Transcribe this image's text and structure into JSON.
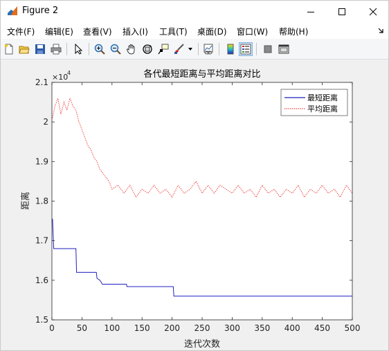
{
  "window": {
    "title": "Figure 2"
  },
  "menu": {
    "items": [
      "文件(F)",
      "编辑(E)",
      "查看(V)",
      "插入(I)",
      "工具(T)",
      "桌面(D)",
      "窗口(W)",
      "帮助(H)"
    ],
    "overflow_icon": "arrow-icon"
  },
  "toolbar": {
    "icons": [
      "new-figure-icon",
      "open-file-icon",
      "save-icon",
      "print-icon",
      "select-arrow-icon",
      "zoom-in-icon",
      "zoom-out-icon",
      "pan-hand-icon",
      "rotate-3d-icon",
      "data-cursor-icon",
      "brush-icon",
      "brush-dropdown-icon",
      "link-plot-icon",
      "colorbar-icon",
      "legend-icon",
      "hide-plot-tools-icon",
      "show-plot-tools-icon"
    ]
  },
  "colors": {
    "shortest_series": "#1f1fbf",
    "average_series": "#e8231f",
    "axes_bg": "#ffffff",
    "figure_bg": "#f0f0f0"
  },
  "chart_data": {
    "type": "line",
    "title": "各代最短距离与平均距离对比",
    "xlabel": "迭代次数",
    "ylabel": "距离",
    "exponent_label": "×10",
    "exponent_power": "4",
    "xlim": [
      0,
      500
    ],
    "ylim": [
      1.5,
      2.1
    ],
    "x_ticks": [
      "0",
      "50",
      "100",
      "150",
      "200",
      "250",
      "300",
      "350",
      "400",
      "450",
      "500"
    ],
    "y_ticks": [
      "1.5",
      "1.6",
      "1.7",
      "1.8",
      "1.9",
      "2",
      "2.1"
    ],
    "grid": false,
    "legend_position": "top-right",
    "series": [
      {
        "name": "最短距离",
        "style": "solid",
        "color": "#1f1fbf",
        "points": [
          [
            1,
            1.755
          ],
          [
            3,
            1.68
          ],
          [
            40,
            1.68
          ],
          [
            41,
            1.62
          ],
          [
            74,
            1.62
          ],
          [
            75,
            1.605
          ],
          [
            80,
            1.6
          ],
          [
            84,
            1.59
          ],
          [
            124,
            1.59
          ],
          [
            125,
            1.584
          ],
          [
            202,
            1.584
          ],
          [
            203,
            1.56
          ],
          [
            500,
            1.56
          ]
        ]
      },
      {
        "name": "平均距离",
        "style": "dotted",
        "color": "#e8231f",
        "points": [
          [
            1,
            2.01
          ],
          [
            5,
            2.04
          ],
          [
            10,
            2.06
          ],
          [
            15,
            2.02
          ],
          [
            20,
            2.05
          ],
          [
            25,
            2.03
          ],
          [
            30,
            2.06
          ],
          [
            35,
            2.04
          ],
          [
            40,
            2.03
          ],
          [
            45,
            2.0
          ],
          [
            50,
            1.98
          ],
          [
            55,
            1.96
          ],
          [
            60,
            1.94
          ],
          [
            65,
            1.93
          ],
          [
            70,
            1.91
          ],
          [
            75,
            1.9
          ],
          [
            80,
            1.88
          ],
          [
            85,
            1.87
          ],
          [
            90,
            1.86
          ],
          [
            95,
            1.85
          ],
          [
            100,
            1.83
          ],
          [
            110,
            1.84
          ],
          [
            120,
            1.82
          ],
          [
            130,
            1.84
          ],
          [
            140,
            1.81
          ],
          [
            150,
            1.83
          ],
          [
            160,
            1.82
          ],
          [
            170,
            1.84
          ],
          [
            180,
            1.82
          ],
          [
            190,
            1.83
          ],
          [
            200,
            1.81
          ],
          [
            210,
            1.84
          ],
          [
            220,
            1.82
          ],
          [
            230,
            1.83
          ],
          [
            240,
            1.85
          ],
          [
            250,
            1.82
          ],
          [
            260,
            1.84
          ],
          [
            270,
            1.82
          ],
          [
            280,
            1.84
          ],
          [
            290,
            1.83
          ],
          [
            300,
            1.82
          ],
          [
            310,
            1.84
          ],
          [
            320,
            1.82
          ],
          [
            330,
            1.83
          ],
          [
            340,
            1.81
          ],
          [
            350,
            1.84
          ],
          [
            360,
            1.82
          ],
          [
            370,
            1.83
          ],
          [
            380,
            1.81
          ],
          [
            390,
            1.83
          ],
          [
            400,
            1.82
          ],
          [
            410,
            1.84
          ],
          [
            420,
            1.81
          ],
          [
            430,
            1.83
          ],
          [
            440,
            1.82
          ],
          [
            450,
            1.84
          ],
          [
            460,
            1.82
          ],
          [
            470,
            1.83
          ],
          [
            480,
            1.81
          ],
          [
            490,
            1.84
          ],
          [
            500,
            1.82
          ]
        ]
      }
    ]
  }
}
